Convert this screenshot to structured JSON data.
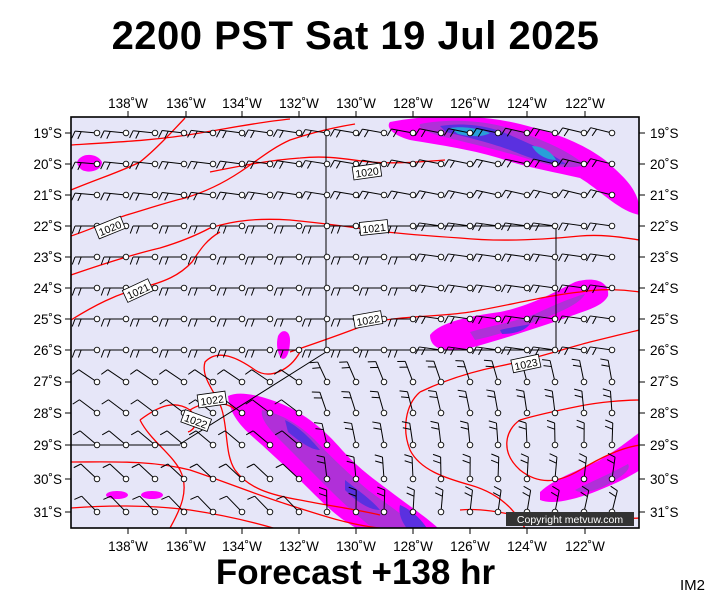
{
  "title": "2200 PST Sat 19 Jul 2025",
  "footer": "Forecast +138 hr",
  "badge": "IM2",
  "copyright": "Copyright metvuw.com",
  "colors": {
    "background": "#e6e6f8",
    "isobar": "#ff0000",
    "rain_light": "#ff00ff",
    "rain_medium": "#b030d8",
    "rain_heavy": "#5a30e0",
    "rain_extreme": "#28a0d8",
    "frame": "#000000"
  },
  "axes": {
    "lon_labels": [
      "138˚W",
      "136˚W",
      "134˚W",
      "132˚W",
      "130˚W",
      "128˚W",
      "126˚W",
      "124˚W",
      "122˚W"
    ],
    "lat_labels": [
      "19˚S",
      "20˚S",
      "21˚S",
      "22˚S",
      "23˚S",
      "24˚S",
      "25˚S",
      "26˚S",
      "27˚S",
      "28˚S",
      "29˚S",
      "30˚S",
      "31˚S"
    ]
  },
  "isobar_labels": [
    "1020",
    "1020",
    "1021",
    "1021",
    "1022",
    "1022",
    "1022",
    "1023"
  ]
}
